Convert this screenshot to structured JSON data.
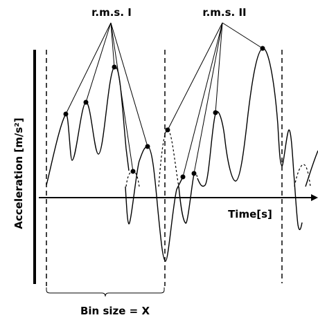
{
  "labels": {
    "rms1": "r.m.s. I",
    "rms2": "r.m.s. II",
    "y_axis": "Acceleration [m/s²]",
    "x_axis": "Time[s]",
    "bin_size": "Bin size = X"
  },
  "colors": {
    "ink": "#000000",
    "background": "#ffffff"
  }
}
